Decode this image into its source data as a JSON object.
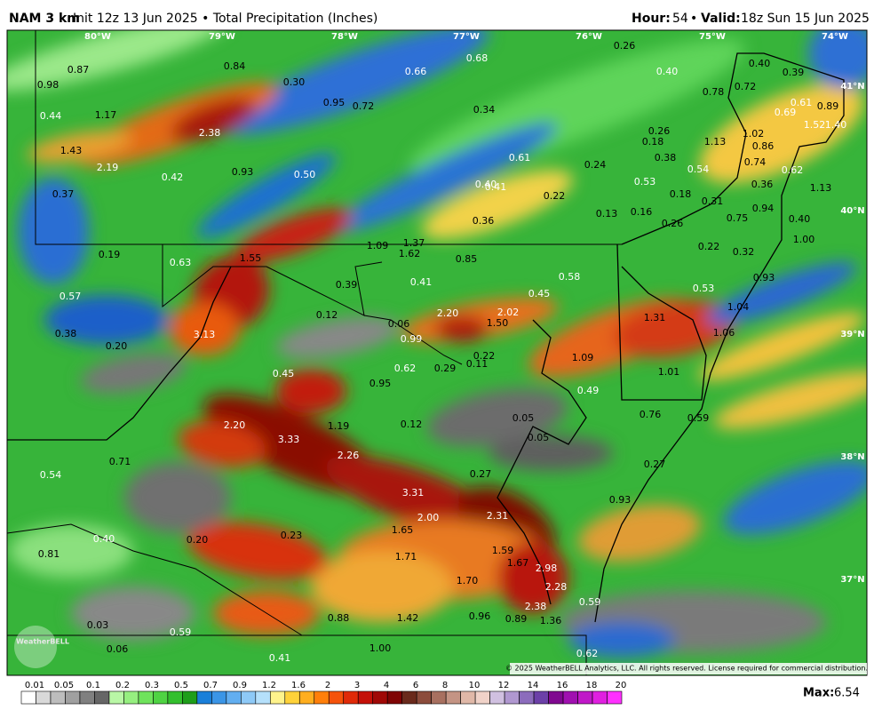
{
  "header": {
    "model": "NAM 3 km",
    "subtitle": "Init 12z 13 Jun 2025 • Total Precipitation (Inches)",
    "hour_label": "Hour:",
    "hour": "54",
    "valid_sep": "•",
    "valid_label": "Valid:",
    "valid": "18z Sun 15 Jun 2025"
  },
  "longitude_labels": [
    "80°W",
    "79°W",
    "78°W",
    "77°W",
    "76°W",
    "75°W",
    "74°W"
  ],
  "latitude_labels": [
    "41°N",
    "40°N",
    "39°N",
    "38°N",
    "37°N"
  ],
  "map_labels": [
    "0.87",
    "0.98",
    "0.84",
    "0.30",
    "0.66",
    "0.68",
    "0.26",
    "0.40",
    "0.40",
    "0.39",
    "0.78",
    "0.72",
    "0.61",
    "0.89",
    "0.44",
    "1.17",
    "0.95",
    "0.72",
    "0.34",
    "2.38",
    "1.02",
    "0.26",
    "0.18",
    "1.13",
    "0.86",
    "1.43",
    "0.61",
    "0.38",
    "0.74",
    "0.24",
    "2.19",
    "0.93",
    "0.54",
    "0.62",
    "0.42",
    "0.50",
    "0.53",
    "0.36",
    "0.40",
    "0.41",
    "0.22",
    "1.13",
    "0.18",
    "0.37",
    "0.31",
    "0.94",
    "0.13",
    "0.16",
    "0.75",
    "0.40",
    "0.36",
    "0.26",
    "1.09",
    "1.37",
    "1.62",
    "0.22",
    "0.32",
    "1.00",
    "0.19",
    "0.63",
    "1.55",
    "0.85",
    "0.39",
    "0.41",
    "0.58",
    "0.93",
    "0.53",
    "0.57",
    "0.45",
    "1.04",
    "0.12",
    "2.20",
    "2.02",
    "1.31",
    "0.06",
    "1.50",
    "0.38",
    "3.13",
    "1.06",
    "0.20",
    "0.99",
    "0.22",
    "1.09",
    "0.11",
    "0.29",
    "0.62",
    "1.01",
    "0.45",
    "0.95",
    "0.49",
    "0.76",
    "0.59",
    "1.19",
    "2.20",
    "0.12",
    "0.05",
    "0.05",
    "3.33",
    "2.26",
    "0.71",
    "0.27",
    "0.54",
    "0.27",
    "3.31",
    "0.93",
    "2.00",
    "2.31",
    "1.65",
    "0.40",
    "0.20",
    "0.23",
    "1.59",
    "0.81",
    "1.71",
    "1.67",
    "2.98",
    "1.70",
    "2.28",
    "2.38",
    "0.59",
    "0.88",
    "1.42",
    "0.96",
    "0.89",
    "1.36",
    "0.03",
    "0.59",
    "0.06",
    "1.00",
    "0.62",
    "0.41",
    "0.69",
    "1.52",
    "1.40"
  ],
  "logo": "WeatherBELL",
  "copyright": "© 2025 WeatherBELL Analytics, LLC. All rights reserved. License required for commercial distribution.",
  "colorbar": {
    "labels": [
      "0.01",
      "0.05",
      "0.1",
      "0.2",
      "0.3",
      "0.5",
      "0.7",
      "0.9",
      "1.2",
      "1.6",
      "2",
      "3",
      "4",
      "6",
      "8",
      "10",
      "12",
      "14",
      "16",
      "18",
      "20"
    ]
  },
  "max": {
    "label": "Max:",
    "value": "6.54"
  }
}
